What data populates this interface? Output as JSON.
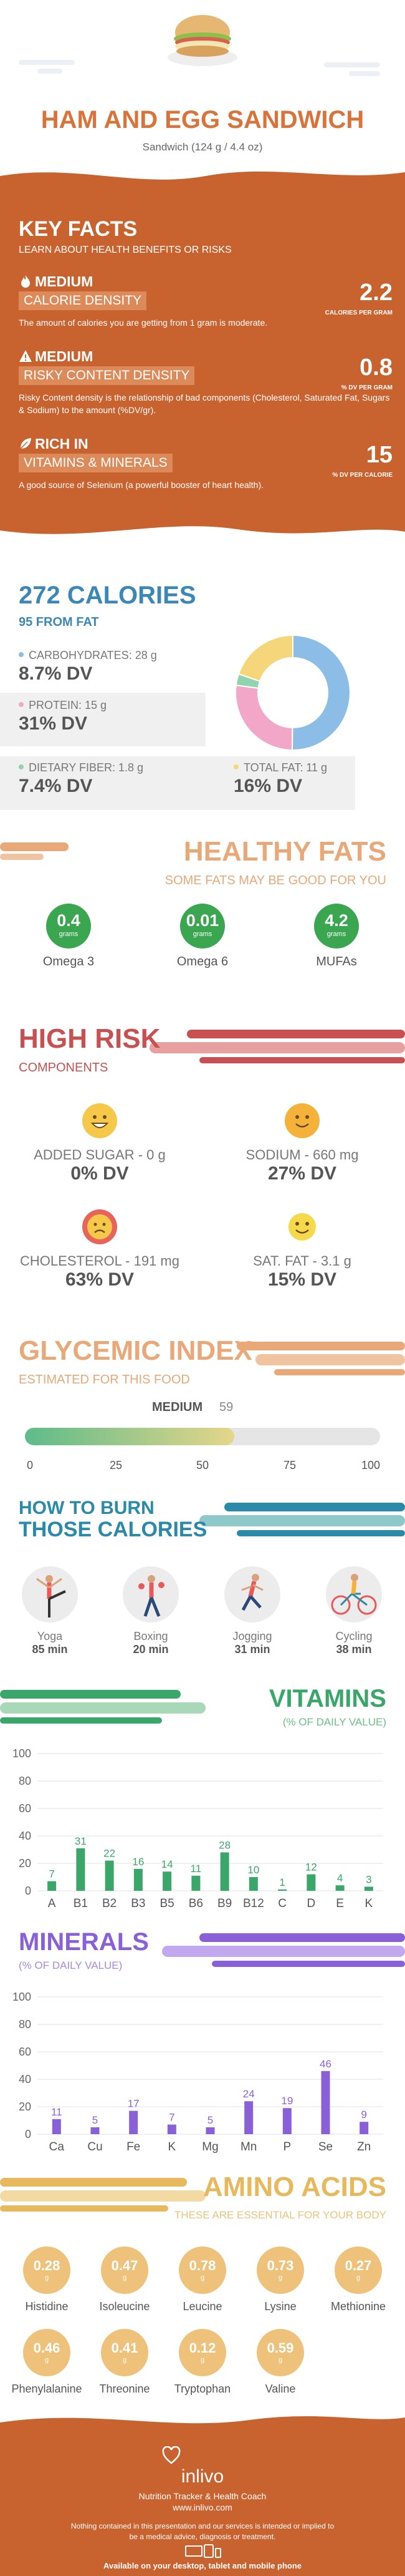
{
  "header": {
    "title": "HAM AND EGG SANDWICH",
    "subtitle": "Sandwich (124 g / 4.4 oz)"
  },
  "key_facts": {
    "title": "KEY FACTS",
    "subtitle": "LEARN ABOUT HEALTH BENEFITS OR RISKS",
    "items": [
      {
        "tag1": "MEDIUM",
        "tag2": "CALORIE DENSITY",
        "value": "2.2",
        "unit": "CALORIES PER GRAM",
        "desc": "The amount of calories you are getting from 1 gram is moderate.",
        "icon": "flame-icon"
      },
      {
        "tag1": "MEDIUM",
        "tag2": "RISKY CONTENT DENSITY",
        "value": "0.8",
        "unit": "% DV PER GRAM",
        "desc": "Risky Content density is the relationship of bad components (Cholesterol, Saturated Fat, Sugars & Sodium) to the amount (%DV/gr).",
        "icon": "warning-icon"
      },
      {
        "tag1": "RICH IN",
        "tag2": "VITAMINS & MINERALS",
        "value": "15",
        "unit": "% DV PER CALORIE",
        "desc": "A good source of Selenium (a powerful booster of heart health).",
        "icon": "leaf-icon"
      }
    ]
  },
  "calories": {
    "title": "272 CALORIES",
    "from_fat": "95 FROM FAT",
    "macros": [
      {
        "label": "CARBOHYDRATES: 28 g",
        "dv": "8.7% DV",
        "color": "#8bbde6",
        "value": 28
      },
      {
        "label": "PROTEIN: 15 g",
        "dv": "31% DV",
        "color": "#f2a7c8",
        "value": 15
      },
      {
        "label": "DIETARY FIBER: 1.8 g",
        "dv": "7.4% DV",
        "color": "#8fd3b0",
        "value": 1.8
      },
      {
        "label": "TOTAL FAT: 11 g",
        "dv": "16% DV",
        "color": "#f5d67a",
        "value": 11
      }
    ]
  },
  "healthy_fats": {
    "title": "HEALTHY FATS",
    "subtitle": "SOME FATS MAY BE GOOD FOR YOU",
    "items": [
      {
        "value": "0.4",
        "unit": "grams",
        "name": "Omega 3"
      },
      {
        "value": "0.01",
        "unit": "grams",
        "name": "Omega 6"
      },
      {
        "value": "4.2",
        "unit": "grams",
        "name": "MUFAs"
      }
    ]
  },
  "high_risk": {
    "title": "HIGH RISK",
    "subtitle": "COMPONENTS",
    "items": [
      {
        "label": "ADDED SUGAR - 0 g",
        "dv": "0% DV",
        "color": "#f6c84a",
        "face": "happy-face-icon"
      },
      {
        "label": "SODIUM - 660 mg",
        "dv": "27% DV",
        "color": "#f5b23a",
        "face": "smile-face-icon"
      },
      {
        "label": "CHOLESTEROL - 191 mg",
        "dv": "63% DV",
        "color": "#e8645a",
        "face": "sad-face-icon"
      },
      {
        "label": "SAT. FAT - 3.1 g",
        "dv": "15% DV",
        "color": "#f6d94a",
        "face": "smile-face-icon"
      }
    ]
  },
  "glycemic": {
    "title": "GLYCEMIC INDEX",
    "subtitle": "ESTIMATED FOR THIS FOOD",
    "level": "MEDIUM",
    "value": "59",
    "fill_fraction": 0.59,
    "ticks": [
      "0",
      "25",
      "50",
      "75",
      "100"
    ]
  },
  "burn": {
    "title_line1": "HOW TO BURN",
    "title_line2": "THOSE CALORIES",
    "activities": [
      {
        "name": "Yoga",
        "minutes": "85 min",
        "icon": "yoga-icon"
      },
      {
        "name": "Boxing",
        "minutes": "20 min",
        "icon": "boxing-icon"
      },
      {
        "name": "Jogging",
        "minutes": "31 min",
        "icon": "jogging-icon"
      },
      {
        "name": "Cycling",
        "minutes": "38 min",
        "icon": "cycling-icon"
      }
    ]
  },
  "vitamins": {
    "title": "VITAMINS",
    "subtitle": "(% OF DAILY VALUE)"
  },
  "minerals": {
    "title": "MINERALS",
    "subtitle": "(% OF DAILY VALUE)"
  },
  "chart_data": [
    {
      "type": "bar",
      "title": "VITAMINS",
      "ylabel": "(% OF DAILY VALUE)",
      "categories": [
        "A",
        "B1",
        "B2",
        "B3",
        "B5",
        "B6",
        "B9",
        "B12",
        "C",
        "D",
        "E",
        "K"
      ],
      "values": [
        7,
        31,
        22,
        16,
        14,
        11,
        28,
        10,
        1,
        12,
        4,
        3
      ],
      "ylim": [
        0,
        100
      ],
      "yticks": [
        0,
        20,
        40,
        60,
        80,
        100
      ],
      "color": "#3aa66a"
    },
    {
      "type": "bar",
      "title": "MINERALS",
      "ylabel": "(% OF DAILY VALUE)",
      "categories": [
        "Ca",
        "Cu",
        "Fe",
        "K",
        "Mg",
        "Mn",
        "P",
        "Se",
        "Zn"
      ],
      "values": [
        11,
        5,
        17,
        7,
        5,
        24,
        19,
        46,
        9
      ],
      "ylim": [
        0,
        100
      ],
      "yticks": [
        0,
        20,
        40,
        60,
        80,
        100
      ],
      "color": "#8a60d8"
    }
  ],
  "amino": {
    "title": "AMINO ACIDS",
    "subtitle": "THESE ARE ESSENTIAL FOR YOUR BODY",
    "items": [
      {
        "value": "0.28",
        "unit": "g",
        "name": "Histidine"
      },
      {
        "value": "0.47",
        "unit": "g",
        "name": "Isoleucine"
      },
      {
        "value": "0.78",
        "unit": "g",
        "name": "Leucine"
      },
      {
        "value": "0.73",
        "unit": "g",
        "name": "Lysine"
      },
      {
        "value": "0.27",
        "unit": "g",
        "name": "Methionine"
      },
      {
        "value": "0.46",
        "unit": "g",
        "name": "Phenylalanine"
      },
      {
        "value": "0.41",
        "unit": "g",
        "name": "Threonine"
      },
      {
        "value": "0.12",
        "unit": "g",
        "name": "Tryptophan"
      },
      {
        "value": "0.59",
        "unit": "g",
        "name": "Valine"
      }
    ]
  },
  "footer": {
    "brand": "inlivo",
    "tagline": "Nutrition Tracker & Health Coach",
    "url": "www.inlivo.com",
    "disclaimer": "Nothing contained in this presentation and our services is intended or implied to be a medical advice, diagnosis or treatment.",
    "available": "Available on your desktop, tablet and mobile phone"
  }
}
